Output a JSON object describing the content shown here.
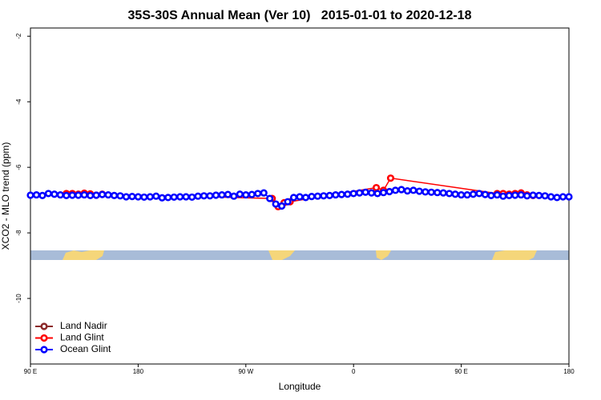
{
  "chart_data": {
    "type": "line",
    "title": "35S-30S Annual Mean (Ver 10)   2015-01-01 to 2020-12-18",
    "x_label": "Longitude",
    "y_label": "XCO2 - MLO trend (ppm)",
    "xlim": [
      90,
      540
    ],
    "ylim": [
      -12,
      -1.75
    ],
    "xticks": [
      {
        "value": 90,
        "label": "90 E"
      },
      {
        "value": 180,
        "label": "180"
      },
      {
        "value": 270,
        "label": "90 W"
      },
      {
        "value": 360,
        "label": "0"
      },
      {
        "value": 450,
        "label": "90 E"
      },
      {
        "value": 540,
        "label": "180"
      }
    ],
    "yticks": [
      -2,
      -4,
      -6,
      -8,
      -10
    ],
    "legend_position": "bottom-left",
    "series": [
      {
        "name": "Land Nadir",
        "color": "#8b2a2a",
        "x": [],
        "values": []
      },
      {
        "name": "Land Glint",
        "color": "#ff0000",
        "x": [
          120,
          125,
          130,
          135,
          140,
          145,
          150,
          292,
          297,
          302,
          307,
          379,
          385,
          391,
          480,
          485,
          490,
          495,
          500,
          505,
          510
        ],
        "values": [
          -6.8,
          -6.8,
          -6.82,
          -6.79,
          -6.81,
          -6.85,
          -6.82,
          -6.95,
          -7.2,
          -7.08,
          -7.05,
          -6.62,
          -6.7,
          -6.33,
          -6.8,
          -6.8,
          -6.82,
          -6.8,
          -6.78,
          -6.84,
          -6.86
        ]
      },
      {
        "name": "Ocean Glint",
        "color": "#0000ff",
        "x": [
          90,
          95,
          100,
          105,
          110,
          115,
          120,
          125,
          130,
          135,
          140,
          145,
          150,
          155,
          160,
          165,
          170,
          175,
          180,
          185,
          190,
          195,
          200,
          205,
          210,
          215,
          220,
          225,
          230,
          235,
          240,
          245,
          250,
          255,
          260,
          265,
          270,
          275,
          280,
          285,
          290,
          295,
          300,
          305,
          310,
          315,
          320,
          325,
          330,
          335,
          340,
          345,
          350,
          355,
          360,
          365,
          370,
          375,
          380,
          385,
          390,
          395,
          400,
          405,
          410,
          415,
          420,
          425,
          430,
          435,
          440,
          445,
          450,
          455,
          460,
          465,
          470,
          475,
          480,
          485,
          490,
          495,
          500,
          505,
          510,
          515,
          520,
          525,
          530,
          535,
          540
        ],
        "values": [
          -6.85,
          -6.84,
          -6.86,
          -6.8,
          -6.82,
          -6.84,
          -6.86,
          -6.85,
          -6.85,
          -6.84,
          -6.86,
          -6.85,
          -6.83,
          -6.84,
          -6.86,
          -6.87,
          -6.9,
          -6.89,
          -6.9,
          -6.91,
          -6.9,
          -6.88,
          -6.93,
          -6.92,
          -6.91,
          -6.9,
          -6.9,
          -6.91,
          -6.88,
          -6.87,
          -6.87,
          -6.85,
          -6.84,
          -6.83,
          -6.88,
          -6.82,
          -6.84,
          -6.83,
          -6.8,
          -6.78,
          -6.95,
          -7.12,
          -7.18,
          -7.05,
          -6.92,
          -6.9,
          -6.92,
          -6.89,
          -6.88,
          -6.87,
          -6.86,
          -6.84,
          -6.83,
          -6.82,
          -6.8,
          -6.78,
          -6.76,
          -6.78,
          -6.8,
          -6.77,
          -6.74,
          -6.7,
          -6.68,
          -6.72,
          -6.7,
          -6.73,
          -6.75,
          -6.76,
          -6.77,
          -6.78,
          -6.8,
          -6.82,
          -6.84,
          -6.84,
          -6.82,
          -6.8,
          -6.83,
          -6.86,
          -6.84,
          -6.88,
          -6.86,
          -6.85,
          -6.84,
          -6.87,
          -6.85,
          -6.86,
          -6.87,
          -6.9,
          -6.92,
          -6.9,
          -6.9
        ]
      }
    ]
  }
}
